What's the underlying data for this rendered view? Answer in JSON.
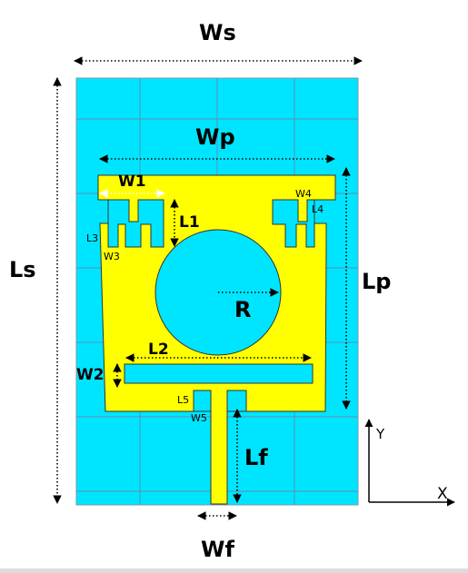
{
  "labels": {
    "ws": "Ws",
    "ls": "Ls",
    "wp": "Wp",
    "lp": "Lp",
    "w1": "W1",
    "l1": "L1",
    "w2": "W2",
    "l2": "L2",
    "w3": "W3",
    "l3": "L3",
    "w4": "W4",
    "l4": "L4",
    "w5": "W5",
    "l5": "L5",
    "r": "R",
    "lf": "Lf",
    "wf": "Wf",
    "x_axis": "X",
    "y_axis": "Y"
  },
  "colors": {
    "substrate": "#00e5ff",
    "patch": "#ffff00",
    "grid": "#5b8fb0",
    "patch_edge": "#333333"
  }
}
